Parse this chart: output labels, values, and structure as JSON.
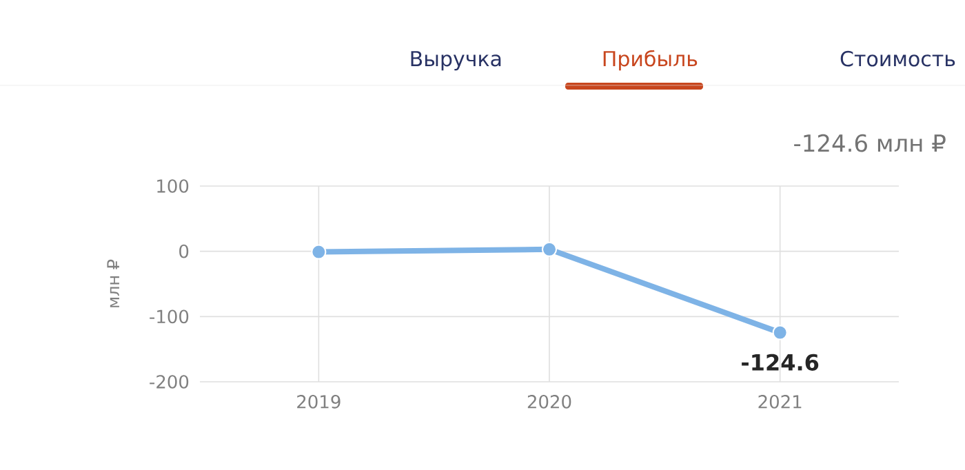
{
  "chart_data": {
    "type": "line",
    "subtitle": "-124.6 млн ₽",
    "ylabel": "млн ₽",
    "annotations": [
      "Выручка",
      "Прибыль",
      "Стоимость"
    ],
    "categories": [
      "2019",
      "2020",
      "2021"
    ],
    "series": [
      {
        "color": "#7eb3e6",
        "values": [
          -1,
          3,
          -124.6
        ],
        "value_labels": [
          null,
          null,
          "-124.6"
        ]
      }
    ],
    "ylim": [
      -200,
      100
    ],
    "yticks": [
      -200,
      -100,
      0,
      100
    ],
    "grid": true,
    "marker": "circle",
    "line_style": "solid"
  }
}
